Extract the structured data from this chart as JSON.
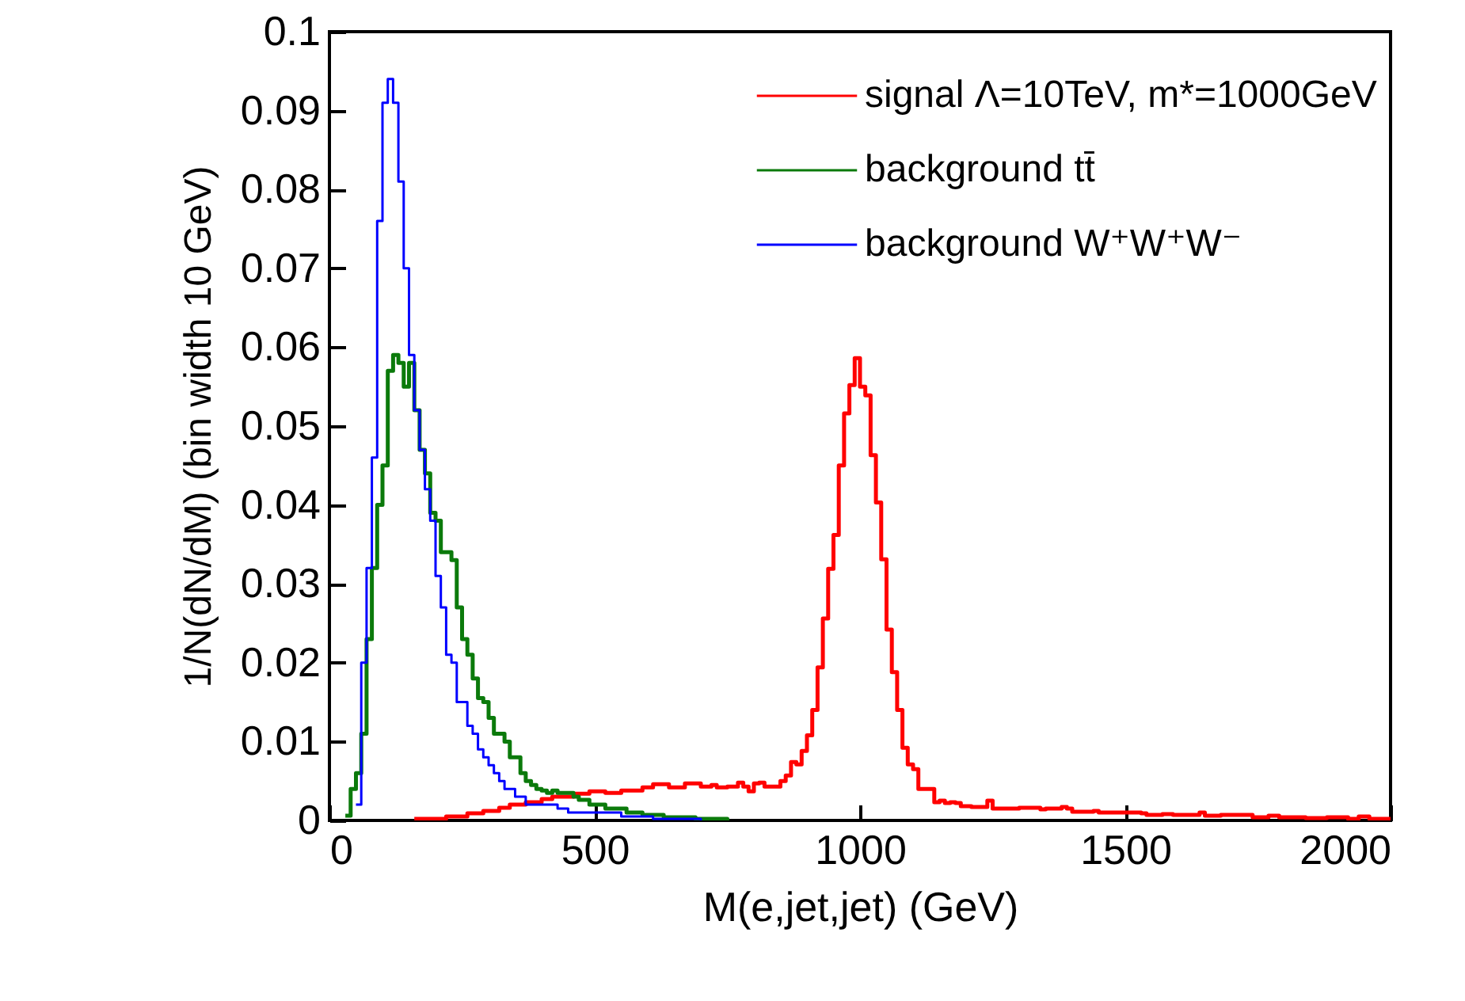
{
  "chart_data": {
    "type": "step",
    "xlabel": "M(e,jet,jet) (GeV)",
    "ylabel": "1/N(dN/dM) (bin width 10 GeV)",
    "xlim": [
      0,
      2000
    ],
    "xticks": [
      0,
      500,
      1000,
      1500,
      2000
    ],
    "ylim": [
      0,
      0.1
    ],
    "yticks": [
      0,
      0.01,
      0.02,
      0.03,
      0.04,
      0.05,
      0.06,
      0.07,
      0.08,
      0.09,
      0.1
    ],
    "grid": false,
    "legend": "top right",
    "series": [
      {
        "name": "signal Λ=10TeV, m*=1000GeV",
        "color": "#ff0000",
        "x": [
          160,
          220,
          260,
          290,
          320,
          340,
          370,
          400,
          420,
          460,
          490,
          520,
          550,
          590,
          610,
          640,
          670,
          700,
          720,
          730,
          750,
          770,
          780,
          790,
          800,
          810,
          820,
          850,
          860,
          870,
          880,
          890,
          900,
          910,
          920,
          930,
          940,
          950,
          960,
          970,
          980,
          990,
          1000,
          1010,
          1020,
          1030,
          1040,
          1050,
          1060,
          1070,
          1080,
          1090,
          1100,
          1110,
          1140,
          1150,
          1160,
          1170,
          1180,
          1190,
          1210,
          1240,
          1250,
          1300,
          1340,
          1350,
          1380,
          1390,
          1400,
          1440,
          1450,
          1530,
          1540,
          1570,
          1590,
          1640,
          1650,
          1680,
          1740,
          1770,
          1790,
          1840,
          1880,
          1920,
          1940,
          1960,
          2000
        ],
        "values": [
          0.0002,
          0.0005,
          0.0009,
          0.0012,
          0.0016,
          0.002,
          0.0023,
          0.0027,
          0.003,
          0.0034,
          0.0037,
          0.0035,
          0.0038,
          0.0042,
          0.0046,
          0.0042,
          0.0047,
          0.0043,
          0.0045,
          0.0042,
          0.0043,
          0.0048,
          0.0043,
          0.0037,
          0.0047,
          0.0048,
          0.0043,
          0.005,
          0.0057,
          0.0074,
          0.0071,
          0.0088,
          0.0108,
          0.014,
          0.0194,
          0.0256,
          0.0319,
          0.0362,
          0.045,
          0.0516,
          0.0552,
          0.0586,
          0.055,
          0.0539,
          0.0463,
          0.0403,
          0.0331,
          0.0242,
          0.0188,
          0.014,
          0.0092,
          0.0071,
          0.0065,
          0.004,
          0.0023,
          0.0025,
          0.0022,
          0.0023,
          0.0022,
          0.0018,
          0.0017,
          0.0025,
          0.0015,
          0.0016,
          0.0014,
          0.0015,
          0.0017,
          0.0015,
          0.0011,
          0.0012,
          0.001,
          0.0009,
          0.0007,
          0.0008,
          0.0007,
          0.001,
          0.0006,
          0.0007,
          0.0004,
          0.0006,
          0.0004,
          0.0003,
          0.0004,
          0.0002,
          0.0005,
          0.0002,
          0.0002
        ]
      },
      {
        "name": "background tt̄",
        "color": "#0b7a0b",
        "x": [
          30,
          40,
          50,
          60,
          70,
          80,
          90,
          100,
          110,
          120,
          130,
          140,
          150,
          160,
          170,
          180,
          190,
          200,
          210,
          220,
          230,
          240,
          250,
          260,
          270,
          280,
          290,
          300,
          310,
          320,
          330,
          340,
          350,
          360,
          370,
          380,
          390,
          400,
          410,
          420,
          430,
          450,
          460,
          470,
          490,
          520,
          560,
          590,
          630,
          690,
          750
        ],
        "values": [
          0.0006,
          0.004,
          0.006,
          0.011,
          0.023,
          0.032,
          0.04,
          0.045,
          0.057,
          0.059,
          0.058,
          0.055,
          0.058,
          0.052,
          0.047,
          0.044,
          0.039,
          0.038,
          0.034,
          0.034,
          0.033,
          0.027,
          0.023,
          0.021,
          0.018,
          0.0155,
          0.015,
          0.013,
          0.011,
          0.011,
          0.01,
          0.008,
          0.008,
          0.006,
          0.005,
          0.0045,
          0.004,
          0.0038,
          0.0035,
          0.0038,
          0.0035,
          0.0035,
          0.003,
          0.0026,
          0.002,
          0.0015,
          0.001,
          0.0007,
          0.0004,
          0.0002,
          0
        ]
      },
      {
        "name": "background W⁺W⁺W⁻",
        "color": "#0000ff",
        "x": [
          50,
          60,
          70,
          80,
          90,
          100,
          110,
          120,
          130,
          140,
          150,
          160,
          170,
          180,
          190,
          200,
          210,
          220,
          230,
          240,
          250,
          260,
          270,
          280,
          290,
          300,
          310,
          320,
          330,
          340,
          350,
          370,
          430,
          450,
          550,
          610,
          700
        ],
        "values": [
          0.002,
          0.02,
          0.032,
          0.046,
          0.076,
          0.091,
          0.094,
          0.091,
          0.081,
          0.07,
          0.059,
          0.052,
          0.047,
          0.042,
          0.038,
          0.031,
          0.027,
          0.021,
          0.02,
          0.015,
          0.015,
          0.012,
          0.011,
          0.009,
          0.008,
          0.007,
          0.006,
          0.005,
          0.004,
          0.004,
          0.003,
          0.002,
          0.0015,
          0.001,
          0.0005,
          0.0002,
          0
        ]
      }
    ]
  }
}
